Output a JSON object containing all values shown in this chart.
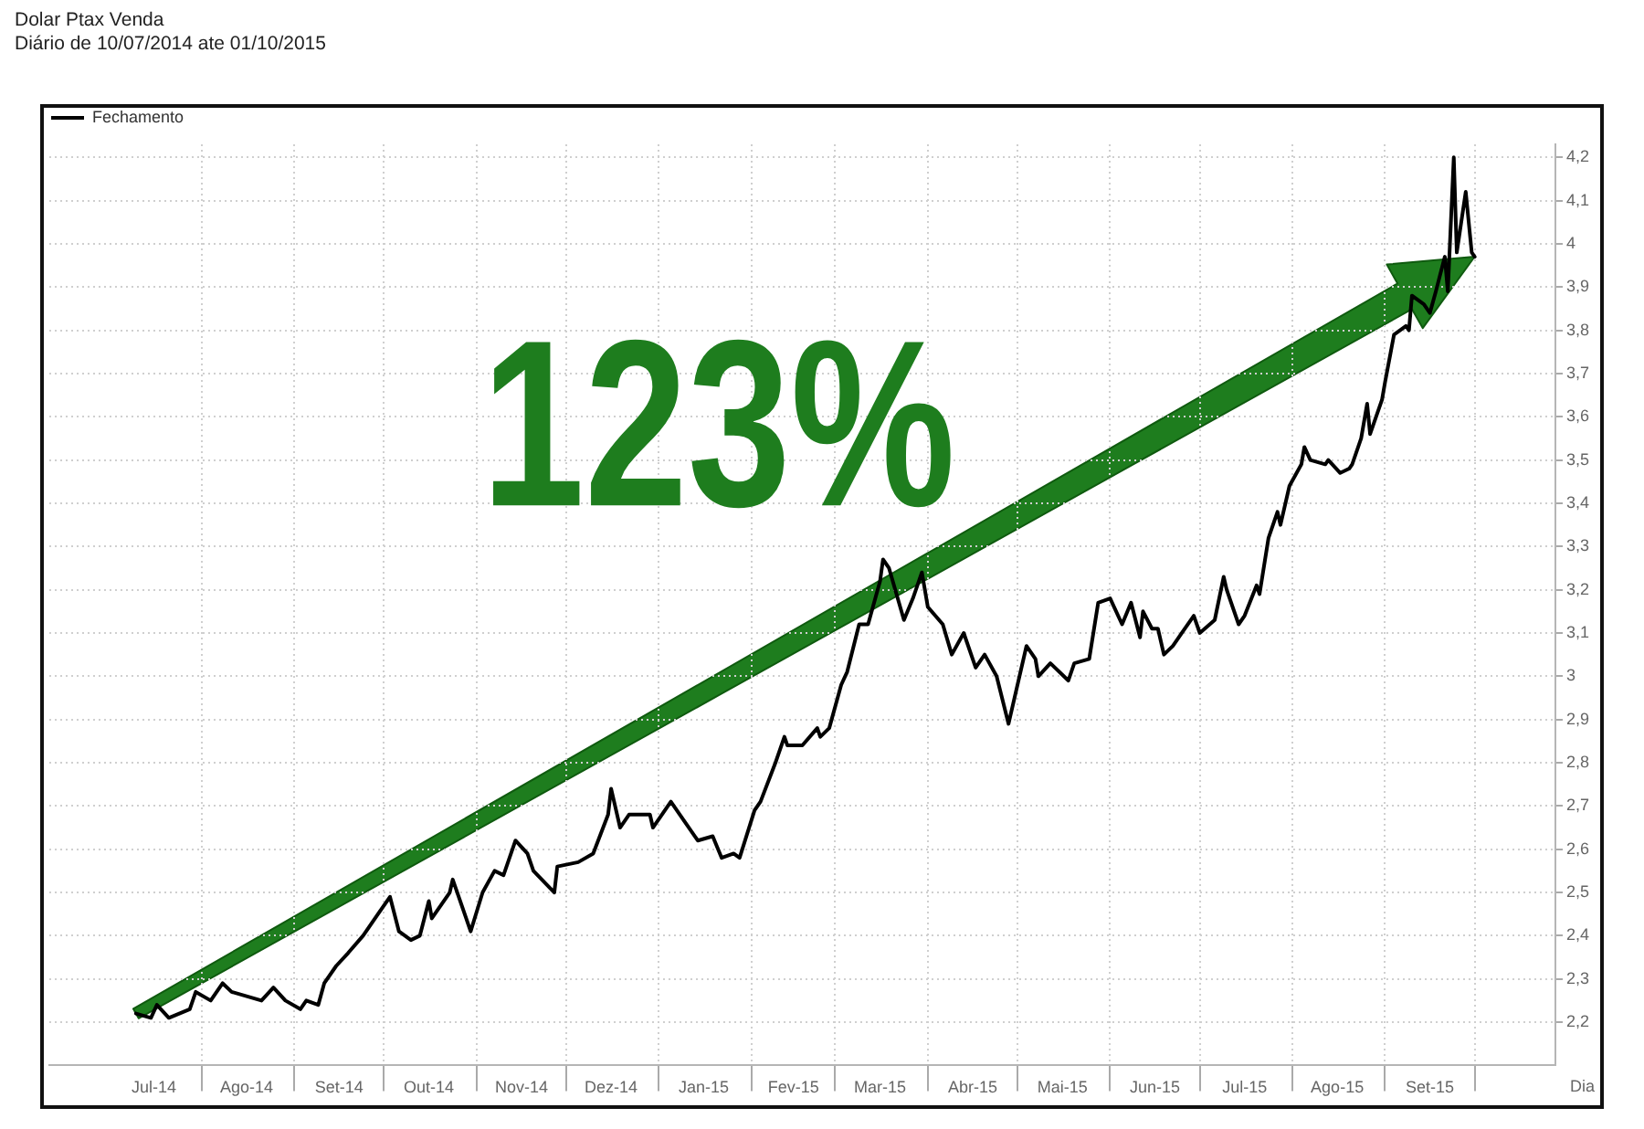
{
  "chart_data": {
    "type": "line",
    "title": "Dolar Ptax Venda",
    "subtitle": "Diário de 10/07/2014 ate 01/10/2015",
    "xlabel": "Dia",
    "annotations": [
      "123%"
    ],
    "x": [
      "2014-07-10",
      "2014-07-15",
      "2014-07-17",
      "2014-07-21",
      "2014-07-28",
      "2014-07-30",
      "2014-08-04",
      "2014-08-08",
      "2014-08-11",
      "2014-08-21",
      "2014-08-25",
      "2014-08-29",
      "2014-09-03",
      "2014-09-05",
      "2014-09-09",
      "2014-09-11",
      "2014-09-15",
      "2014-09-19",
      "2014-09-24",
      "2014-09-29",
      "2014-10-03",
      "2014-10-06",
      "2014-10-10",
      "2014-10-13",
      "2014-10-16",
      "2014-10-17",
      "2014-10-23",
      "2014-10-24",
      "2014-10-30",
      "2014-11-03",
      "2014-11-07",
      "2014-11-10",
      "2014-11-14",
      "2014-11-18",
      "2014-11-20",
      "2014-11-27",
      "2014-11-28",
      "2014-12-05",
      "2014-12-10",
      "2014-12-15",
      "2014-12-16",
      "2014-12-19",
      "2014-12-22",
      "2014-12-29",
      "2014-12-30",
      "2015-01-05",
      "2015-01-08",
      "2015-01-14",
      "2015-01-19",
      "2015-01-22",
      "2015-01-26",
      "2015-01-28",
      "2015-02-02",
      "2015-02-04",
      "2015-02-09",
      "2015-02-12",
      "2015-02-13",
      "2015-02-18",
      "2015-02-23",
      "2015-02-24",
      "2015-02-27",
      "2015-03-03",
      "2015-03-05",
      "2015-03-09",
      "2015-03-12",
      "2015-03-16",
      "2015-03-17",
      "2015-03-19",
      "2015-03-24",
      "2015-03-27",
      "2015-03-30",
      "2015-04-01",
      "2015-04-06",
      "2015-04-09",
      "2015-04-13",
      "2015-04-17",
      "2015-04-20",
      "2015-04-24",
      "2015-04-28",
      "2015-05-04",
      "2015-05-07",
      "2015-05-08",
      "2015-05-12",
      "2015-05-18",
      "2015-05-20",
      "2015-05-25",
      "2015-05-28",
      "2015-06-01",
      "2015-06-05",
      "2015-06-08",
      "2015-06-11",
      "2015-06-12",
      "2015-06-15",
      "2015-06-17",
      "2015-06-19",
      "2015-06-22",
      "2015-06-25",
      "2015-06-29",
      "2015-07-01",
      "2015-07-06",
      "2015-07-09",
      "2015-07-10",
      "2015-07-14",
      "2015-07-16",
      "2015-07-20",
      "2015-07-21",
      "2015-07-24",
      "2015-07-27",
      "2015-07-28",
      "2015-07-31",
      "2015-08-04",
      "2015-08-05",
      "2015-08-07",
      "2015-08-12",
      "2015-08-13",
      "2015-08-17",
      "2015-08-20",
      "2015-08-21",
      "2015-08-24",
      "2015-08-26",
      "2015-08-27",
      "2015-08-31",
      "2015-09-01",
      "2015-09-04",
      "2015-09-08",
      "2015-09-09",
      "2015-09-10",
      "2015-09-14",
      "2015-09-16",
      "2015-09-18",
      "2015-09-21",
      "2015-09-22",
      "2015-09-24",
      "2015-09-25",
      "2015-09-28",
      "2015-09-30",
      "2015-10-01"
    ],
    "series": [
      {
        "name": "Fechamento",
        "color": "#000000",
        "values": [
          2.22,
          2.21,
          2.24,
          2.21,
          2.23,
          2.27,
          2.25,
          2.29,
          2.27,
          2.25,
          2.28,
          2.25,
          2.23,
          2.25,
          2.24,
          2.29,
          2.33,
          2.36,
          2.4,
          2.45,
          2.49,
          2.41,
          2.39,
          2.4,
          2.48,
          2.44,
          2.5,
          2.53,
          2.41,
          2.5,
          2.55,
          2.54,
          2.62,
          2.59,
          2.55,
          2.5,
          2.56,
          2.57,
          2.59,
          2.68,
          2.74,
          2.65,
          2.68,
          2.68,
          2.65,
          2.71,
          2.68,
          2.62,
          2.63,
          2.58,
          2.59,
          2.58,
          2.69,
          2.71,
          2.8,
          2.86,
          2.84,
          2.84,
          2.88,
          2.86,
          2.88,
          2.98,
          3.01,
          3.12,
          3.12,
          3.22,
          3.27,
          3.25,
          3.13,
          3.18,
          3.24,
          3.16,
          3.12,
          3.05,
          3.1,
          3.02,
          3.05,
          3.0,
          2.89,
          3.07,
          3.04,
          3.0,
          3.03,
          2.99,
          3.03,
          3.04,
          3.17,
          3.18,
          3.12,
          3.17,
          3.09,
          3.15,
          3.11,
          3.11,
          3.05,
          3.07,
          3.1,
          3.14,
          3.1,
          3.13,
          3.23,
          3.2,
          3.12,
          3.14,
          3.21,
          3.19,
          3.32,
          3.38,
          3.35,
          3.44,
          3.49,
          3.53,
          3.5,
          3.49,
          3.5,
          3.47,
          3.48,
          3.49,
          3.55,
          3.63,
          3.56,
          3.64,
          3.68,
          3.79,
          3.81,
          3.8,
          3.88,
          3.86,
          3.84,
          3.89,
          3.97,
          3.89,
          4.2,
          3.98,
          4.12,
          3.98,
          3.97
        ]
      }
    ],
    "xlim": [
      "2014-06-11",
      "2015-10-28"
    ],
    "xticks": [
      {
        "value": "2014-07-16",
        "label": "Jul-14"
      },
      {
        "value": "2014-08-01",
        "label": null
      },
      {
        "value": "2014-08-16",
        "label": "Ago-14"
      },
      {
        "value": "2014-09-01",
        "label": null
      },
      {
        "value": "2014-09-16",
        "label": "Set-14"
      },
      {
        "value": "2014-10-01",
        "label": null
      },
      {
        "value": "2014-10-16",
        "label": "Out-14"
      },
      {
        "value": "2014-11-01",
        "label": null
      },
      {
        "value": "2014-11-16",
        "label": "Nov-14"
      },
      {
        "value": "2014-12-01",
        "label": null
      },
      {
        "value": "2014-12-16",
        "label": "Dez-14"
      },
      {
        "value": "2015-01-01",
        "label": null
      },
      {
        "value": "2015-01-16",
        "label": "Jan-15"
      },
      {
        "value": "2015-02-01",
        "label": null
      },
      {
        "value": "2015-02-15",
        "label": "Fev-15"
      },
      {
        "value": "2015-03-01",
        "label": null
      },
      {
        "value": "2015-03-16",
        "label": "Mar-15"
      },
      {
        "value": "2015-04-01",
        "label": null
      },
      {
        "value": "2015-04-16",
        "label": "Abr-15"
      },
      {
        "value": "2015-05-01",
        "label": null
      },
      {
        "value": "2015-05-16",
        "label": "Mai-15"
      },
      {
        "value": "2015-06-01",
        "label": null
      },
      {
        "value": "2015-06-16",
        "label": "Jun-15"
      },
      {
        "value": "2015-07-01",
        "label": null
      },
      {
        "value": "2015-07-16",
        "label": "Jul-15"
      },
      {
        "value": "2015-08-01",
        "label": null
      },
      {
        "value": "2015-08-16",
        "label": "Ago-15"
      },
      {
        "value": "2015-09-01",
        "label": null
      },
      {
        "value": "2015-09-16",
        "label": "Set-15"
      },
      {
        "value": "2015-10-01",
        "label": null
      }
    ],
    "ylim": [
      2.1,
      4.23
    ],
    "yticks": [
      {
        "value": 2.2,
        "label": "2,2"
      },
      {
        "value": 2.3,
        "label": "2,3"
      },
      {
        "value": 2.4,
        "label": "2,4"
      },
      {
        "value": 2.5,
        "label": "2,5"
      },
      {
        "value": 2.6,
        "label": "2,6"
      },
      {
        "value": 2.7,
        "label": "2,7"
      },
      {
        "value": 2.8,
        "label": "2,8"
      },
      {
        "value": 2.9,
        "label": "2,9"
      },
      3,
      {
        "value": 3.1,
        "label": "3,1"
      },
      {
        "value": 3.2,
        "label": "3,2"
      },
      {
        "value": 3.3,
        "label": "3,3"
      },
      {
        "value": 3.4,
        "label": "3,4"
      },
      {
        "value": 3.5,
        "label": "3,5"
      },
      {
        "value": 3.6,
        "label": "3,6"
      },
      {
        "value": 3.7,
        "label": "3,7"
      },
      {
        "value": 3.8,
        "label": "3,8"
      },
      {
        "value": 3.9,
        "label": "3,9"
      },
      4,
      {
        "value": 4.1,
        "label": "4,1"
      },
      {
        "value": 4.2,
        "label": "4,2"
      }
    ],
    "grid": true,
    "legend": "top left",
    "marker": "none"
  }
}
